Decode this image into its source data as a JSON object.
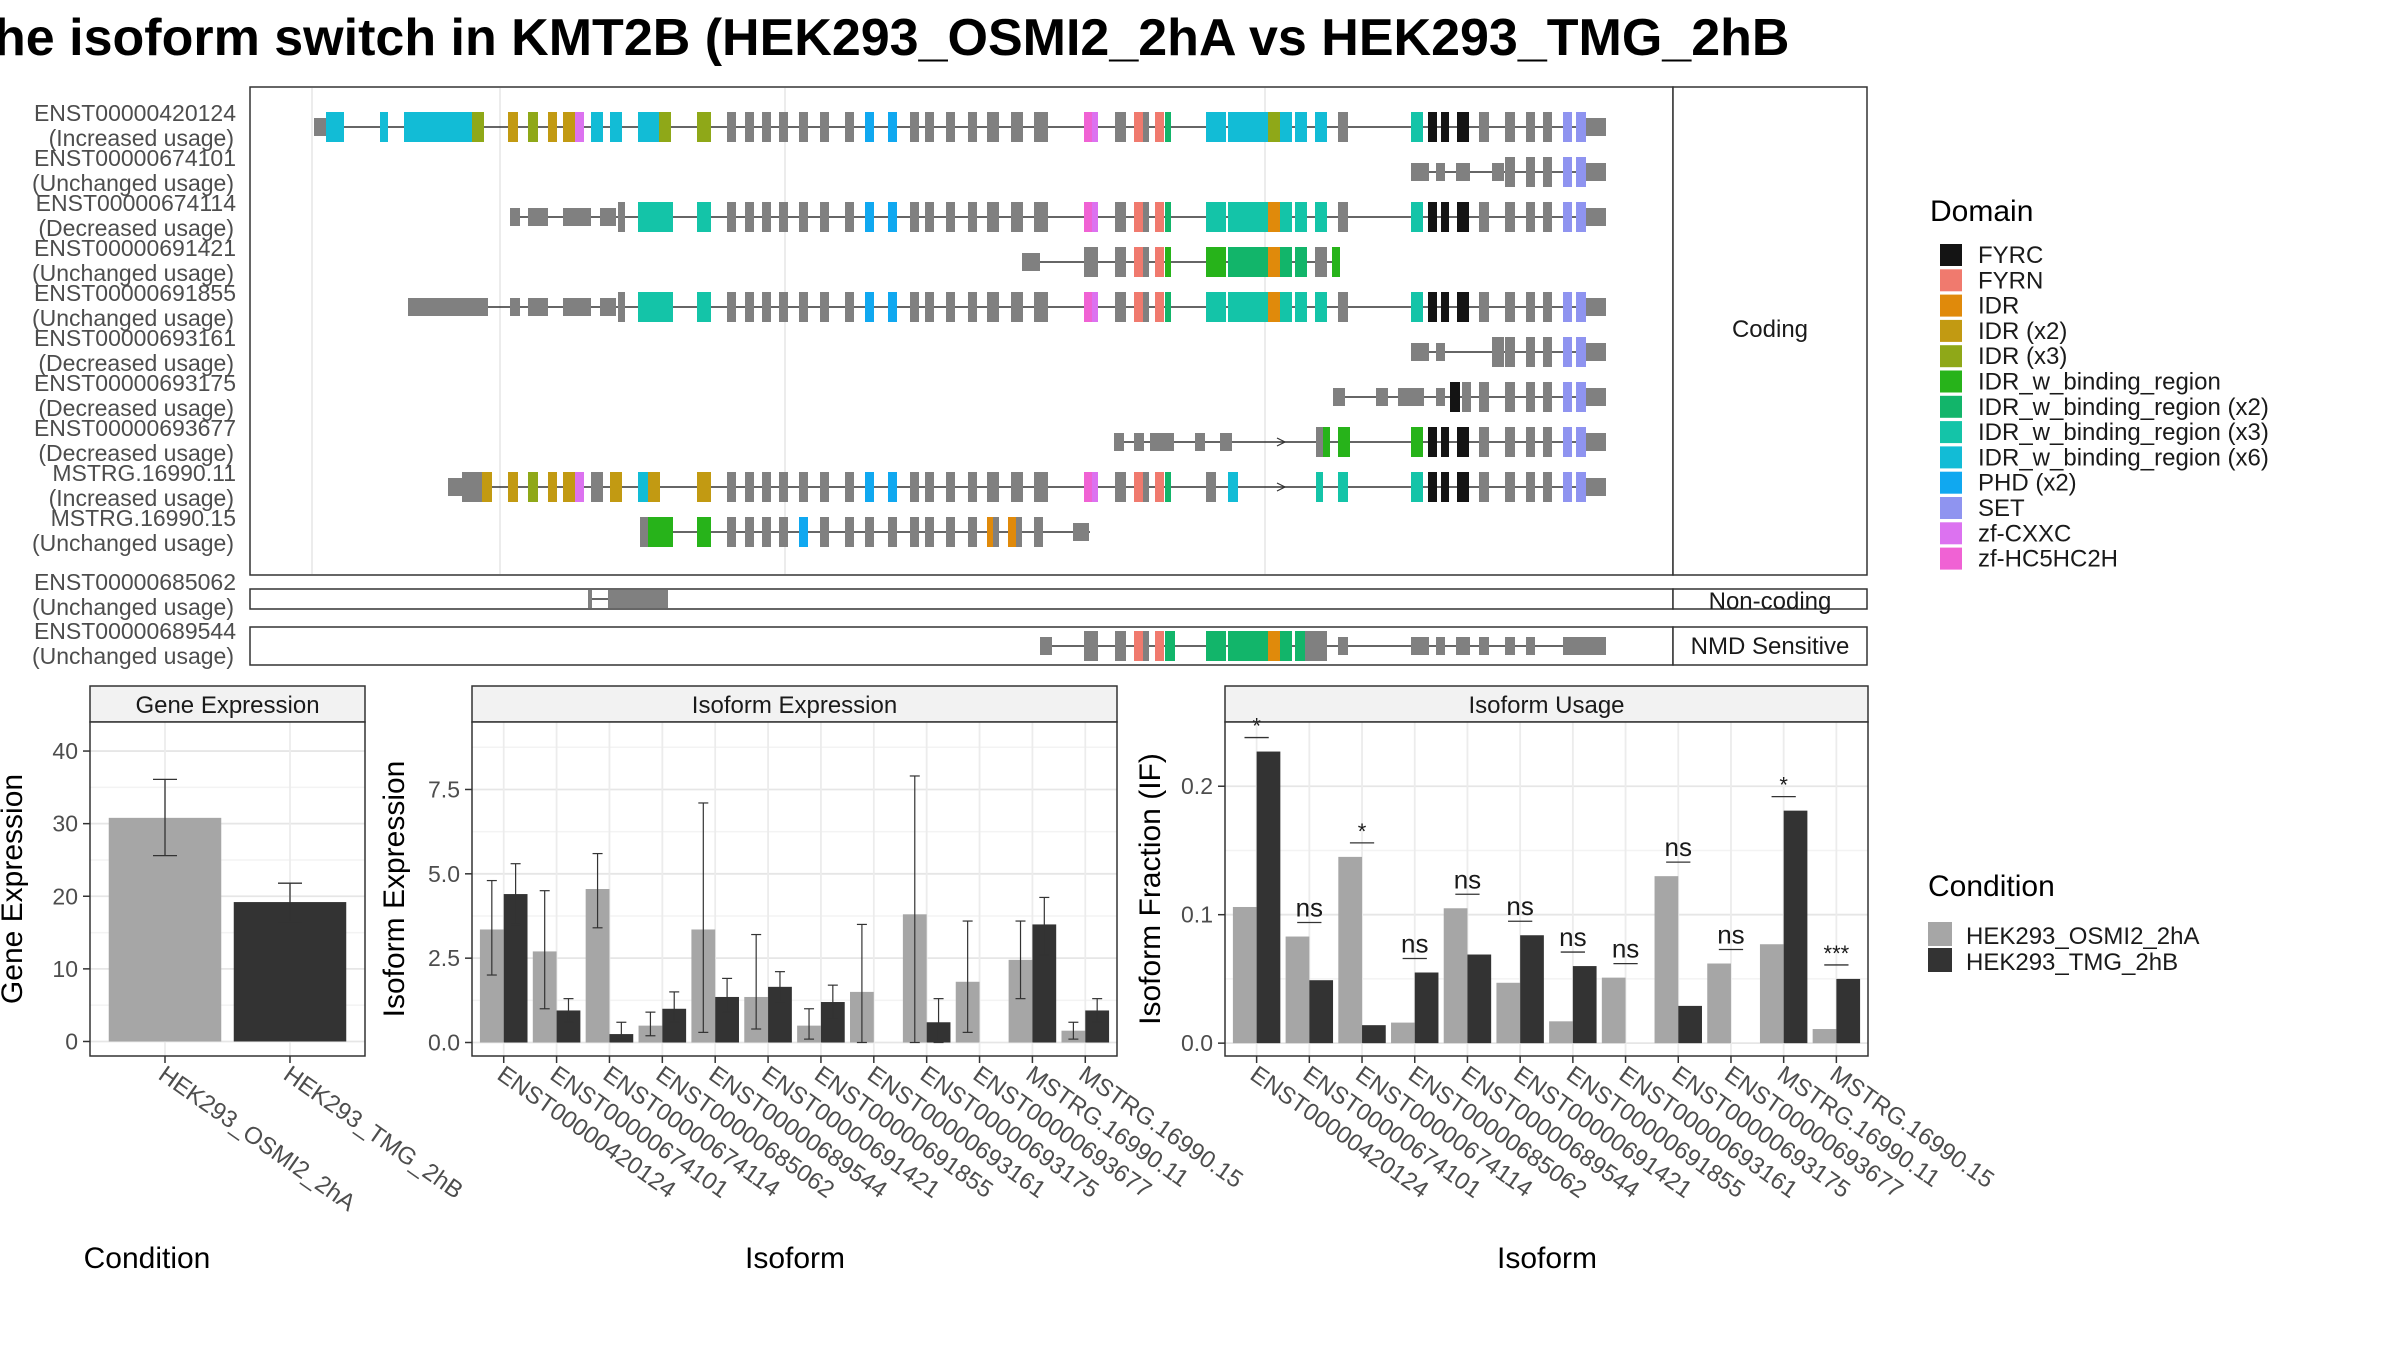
{
  "title": "he isoform switch in KMT2B (HEK293_OSMI2_2hA vs HEK293_TMG_2hB",
  "colors": {
    "cond_a": "#a6a6a6",
    "cond_b": "#333333",
    "exon_gray": "#808080"
  },
  "structure": {
    "categories": [
      "Coding",
      "Non-coding",
      "NMD Sensitive"
    ],
    "coding_transcripts": [
      {
        "id": "ENST00000420124",
        "usage": "(Increased usage)"
      },
      {
        "id": "ENST00000674101",
        "usage": "(Unchanged usage)"
      },
      {
        "id": "ENST00000674114",
        "usage": "(Decreased usage)"
      },
      {
        "id": "ENST00000691421",
        "usage": "(Unchanged usage)"
      },
      {
        "id": "ENST00000691855",
        "usage": "(Unchanged usage)"
      },
      {
        "id": "ENST00000693161",
        "usage": "(Decreased usage)"
      },
      {
        "id": "ENST00000693175",
        "usage": "(Decreased usage)"
      },
      {
        "id": "ENST00000693677",
        "usage": "(Decreased usage)"
      },
      {
        "id": "MSTRG.16990.11",
        "usage": "(Increased usage)"
      },
      {
        "id": "MSTRG.16990.15",
        "usage": "(Unchanged usage)"
      }
    ],
    "noncoding_transcripts": [
      {
        "id": "ENST00000685062",
        "usage": "(Unchanged usage)"
      }
    ],
    "nmd_transcripts": [
      {
        "id": "ENST00000689544",
        "usage": "(Unchanged usage)"
      }
    ]
  },
  "domain_legend": {
    "title": "Domain",
    "items": [
      {
        "label": "FYRC",
        "color": "#141414"
      },
      {
        "label": "FYRN",
        "color": "#f07a6e"
      },
      {
        "label": "IDR",
        "color": "#e08a0b"
      },
      {
        "label": "IDR (x2)",
        "color": "#c29a12"
      },
      {
        "label": "IDR (x3)",
        "color": "#8fa818"
      },
      {
        "label": "IDR_w_binding_region",
        "color": "#27b31a"
      },
      {
        "label": "IDR_w_binding_region (x2)",
        "color": "#12b56a"
      },
      {
        "label": "IDR_w_binding_region (x3)",
        "color": "#14c4a8"
      },
      {
        "label": "IDR_w_binding_region (x6)",
        "color": "#12bcd6"
      },
      {
        "label": "PHD (x2)",
        "color": "#10a8f0"
      },
      {
        "label": "SET",
        "color": "#8f94f0"
      },
      {
        "label": "zf-CXXC",
        "color": "#dc72f0"
      },
      {
        "label": "zf-HC5HC2H",
        "color": "#f062d4"
      }
    ]
  },
  "condition_legend": {
    "title": "Condition",
    "items": [
      "HEK293_OSMI2_2hA",
      "HEK293_TMG_2hB"
    ]
  },
  "chart_data": [
    {
      "type": "bar",
      "title": "Gene Expression",
      "xlabel": "Condition",
      "ylabel": "Gene Expression",
      "categories": [
        "HEK293_OSMI2_2hA",
        "HEK293_TMG_2hB"
      ],
      "values": [
        30.8,
        19.2
      ],
      "errors": [
        [
          25.6,
          36.1
        ],
        [
          16.5,
          21.8
        ]
      ],
      "ylim": [
        -2,
        44
      ],
      "yticks": [
        0,
        10,
        20,
        30,
        40
      ],
      "ytick_labels": [
        "0",
        "10",
        "20",
        "30",
        "40"
      ]
    },
    {
      "type": "bar",
      "title": "Isoform Expression",
      "xlabel": "Isoform",
      "ylabel": "Isoform Expression",
      "categories": [
        "ENST00000420124",
        "ENST00000674101",
        "ENST00000674114",
        "ENST00000685062",
        "ENST00000689544",
        "ENST00000691421",
        "ENST00000691855",
        "ENST00000693161",
        "ENST00000693175",
        "ENST00000693677",
        "MSTRG.16990.11",
        "MSTRG.16990.15"
      ],
      "series": [
        {
          "name": "HEK293_OSMI2_2hA",
          "values": [
            3.35,
            2.7,
            4.55,
            0.5,
            3.35,
            1.35,
            0.5,
            1.5,
            3.8,
            1.8,
            2.45,
            0.35
          ]
        },
        {
          "name": "HEK293_TMG_2hB",
          "values": [
            4.4,
            0.95,
            0.25,
            1.0,
            1.35,
            1.65,
            1.2,
            0.0,
            0.6,
            0.0,
            3.5,
            0.95
          ]
        }
      ],
      "errors": [
        [
          [
            2.0,
            4.8
          ],
          [
            1.0,
            4.5
          ],
          [
            3.4,
            5.6
          ],
          [
            0.2,
            0.9
          ],
          [
            0.3,
            7.1
          ],
          [
            0.4,
            3.2
          ],
          [
            0.1,
            1.0
          ],
          [
            0.0,
            3.5
          ],
          [
            0.0,
            7.9
          ],
          [
            0.3,
            3.6
          ],
          [
            1.3,
            3.6
          ],
          [
            0.1,
            0.6
          ]
        ],
        [
          [
            3.5,
            5.3
          ],
          [
            0.6,
            1.3
          ],
          [
            0.1,
            0.6
          ],
          [
            0.6,
            1.5
          ],
          [
            0.9,
            1.9
          ],
          [
            1.2,
            2.1
          ],
          [
            0.7,
            1.7
          ],
          [
            0.0,
            0.0
          ],
          [
            0.0,
            1.3
          ],
          [
            0.0,
            0.0
          ],
          [
            2.6,
            4.3
          ],
          [
            0.6,
            1.3
          ]
        ]
      ],
      "ylim": [
        -0.4,
        9.5
      ],
      "yticks": [
        0,
        2.5,
        5.0,
        7.5
      ],
      "ytick_labels": [
        "0.0",
        "2.5",
        "5.0",
        "7.5"
      ]
    },
    {
      "type": "bar",
      "title": "Isoform Usage",
      "xlabel": "Isoform",
      "ylabel": "Isoform Fraction (IF)",
      "categories": [
        "ENST00000420124",
        "ENST00000674101",
        "ENST00000674114",
        "ENST00000685062",
        "ENST00000689544",
        "ENST00000691421",
        "ENST00000691855",
        "ENST00000693161",
        "ENST00000693175",
        "ENST00000693677",
        "MSTRG.16990.11",
        "MSTRG.16990.15"
      ],
      "series": [
        {
          "name": "HEK293_OSMI2_2hA",
          "values": [
            0.106,
            0.083,
            0.145,
            0.016,
            0.105,
            0.047,
            0.017,
            0.051,
            0.13,
            0.062,
            0.077,
            0.011
          ]
        },
        {
          "name": "HEK293_TMG_2hB",
          "values": [
            0.227,
            0.049,
            0.014,
            0.055,
            0.069,
            0.084,
            0.06,
            0.0,
            0.029,
            0.0,
            0.181,
            0.05
          ]
        }
      ],
      "significance": [
        "*",
        "ns",
        "*",
        "ns",
        "ns",
        "ns",
        "ns",
        "ns",
        "ns",
        "ns",
        "*",
        "***"
      ],
      "ylim": [
        -0.01,
        0.25
      ],
      "yticks": [
        0,
        0.1,
        0.2
      ],
      "ytick_labels": [
        "0.0",
        "0.1",
        "0.2"
      ]
    }
  ]
}
